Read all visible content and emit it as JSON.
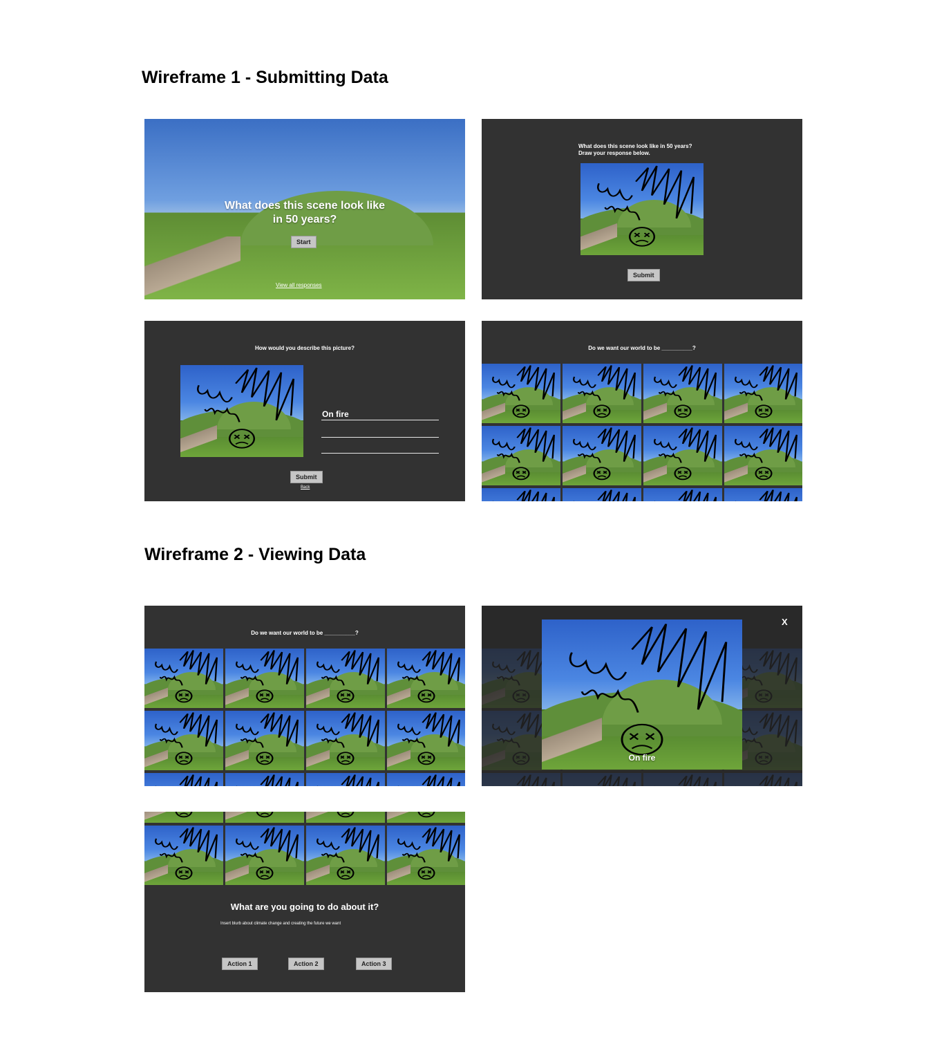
{
  "wireframe1": {
    "title": "Wireframe 1 - Submitting Data",
    "screen1": {
      "question": "What does this scene look like in 50 years?",
      "start_label": "Start",
      "view_all_label": "View all responses"
    },
    "screen2": {
      "prompt_line1": "What does this scene look like in 50 years?",
      "prompt_line2": "Draw your response below.",
      "submit_label": "Submit"
    },
    "screen3": {
      "question": "How would you describe this picture?",
      "answer1": "On fire",
      "submit_label": "Submit",
      "back_label": "Back"
    },
    "screen4": {
      "question": "Do we want our world to be __________?"
    }
  },
  "wireframe2": {
    "title": "Wireframe 2 - Viewing Data",
    "screen1": {
      "question": "Do we want our world to be __________?"
    },
    "screen2": {
      "close_label": "X",
      "caption": "On fire"
    },
    "screen3": {
      "heading": "What are you going to do about it?",
      "blurb": "Insert blurb about climate change and creating the future we want",
      "actions": [
        "Action 1",
        "Action 2",
        "Action 3"
      ]
    }
  }
}
